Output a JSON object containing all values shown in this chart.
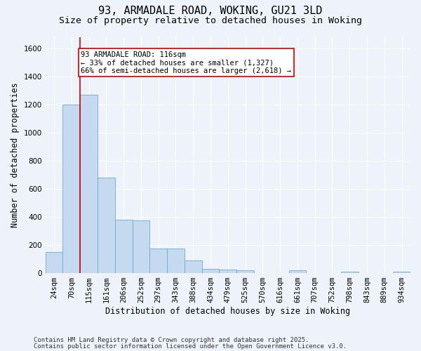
{
  "title_line1": "93, ARMADALE ROAD, WOKING, GU21 3LD",
  "title_line2": "Size of property relative to detached houses in Woking",
  "xlabel": "Distribution of detached houses by size in Woking",
  "ylabel": "Number of detached properties",
  "categories": [
    "24sqm",
    "70sqm",
    "115sqm",
    "161sqm",
    "206sqm",
    "252sqm",
    "297sqm",
    "343sqm",
    "388sqm",
    "434sqm",
    "479sqm",
    "525sqm",
    "570sqm",
    "616sqm",
    "661sqm",
    "707sqm",
    "752sqm",
    "798sqm",
    "843sqm",
    "889sqm",
    "934sqm"
  ],
  "bar_edges": [
    0,
    1,
    2,
    3,
    4,
    5,
    6,
    7,
    8,
    9,
    10,
    11,
    12,
    13,
    14,
    15,
    16,
    17,
    18,
    19,
    20,
    21
  ],
  "bar_heights": [
    150,
    1200,
    1270,
    680,
    380,
    375,
    175,
    175,
    90,
    30,
    25,
    20,
    0,
    0,
    20,
    0,
    0,
    10,
    0,
    0,
    10
  ],
  "bar_color": "#c5d9f0",
  "bar_edgecolor": "#6aabd2",
  "background_color": "#eef2fb",
  "grid_color": "#ffffff",
  "red_line_x": 2.0,
  "annotation_text": "93 ARMADALE ROAD: 116sqm\n← 33% of detached houses are smaller (1,327)\n66% of semi-detached houses are larger (2,618) →",
  "annotation_box_edgecolor": "#cc0000",
  "annotation_box_facecolor": "#ffffff",
  "ylim": [
    0,
    1680
  ],
  "yticks": [
    0,
    200,
    400,
    600,
    800,
    1000,
    1200,
    1400,
    1600
  ],
  "footer_line1": "Contains HM Land Registry data © Crown copyright and database right 2025.",
  "footer_line2": "Contains public sector information licensed under the Open Government Licence v3.0.",
  "title_fontsize": 11,
  "subtitle_fontsize": 9.5,
  "axis_label_fontsize": 8.5,
  "tick_fontsize": 7.5,
  "annotation_fontsize": 7.5,
  "footer_fontsize": 6.5
}
